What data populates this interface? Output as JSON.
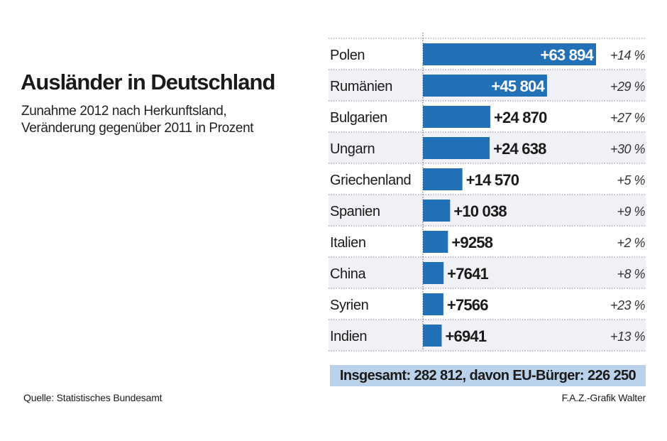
{
  "chart_data": {
    "type": "bar",
    "orientation": "horizontal",
    "title": "Ausländer in Deutschland",
    "subtitle": [
      "Zunahme 2012 nach Herkunftsland,",
      "Veränderung gegenüber 2011 in Prozent"
    ],
    "categories": [
      "Polen",
      "Rumänien",
      "Bulgarien",
      "Ungarn",
      "Griechenland",
      "Spanien",
      "Italien",
      "China",
      "Syrien",
      "Indien"
    ],
    "values": [
      63894,
      45804,
      24870,
      24638,
      14570,
      10038,
      9258,
      7641,
      7566,
      6941
    ],
    "value_labels": [
      "+63 894",
      "+45 804",
      "+24 870",
      "+24 638",
      "+14 570",
      "+10 038",
      "+9258",
      "+7641",
      "+7566",
      "+6941"
    ],
    "change_labels": [
      "+14 %",
      "+29 %",
      "+27 %",
      "+30 %",
      "+5 %",
      "+9 %",
      "+2 %",
      "+8 %",
      "+23 %",
      "+13 %"
    ],
    "change_percent": [
      14,
      29,
      27,
      30,
      5,
      9,
      2,
      8,
      23,
      13
    ],
    "total": "Insgesamt: 282 812, davon EU-Bürger: 226 250",
    "source": "Quelle: Statistisches Bundesamt",
    "credit": "F.A.Z.-Grafik Walter",
    "colors": {
      "bar": "#2270b5",
      "row_alt": "#f0f1f4",
      "total_bg": "#b9d1e9"
    },
    "grid": false
  }
}
